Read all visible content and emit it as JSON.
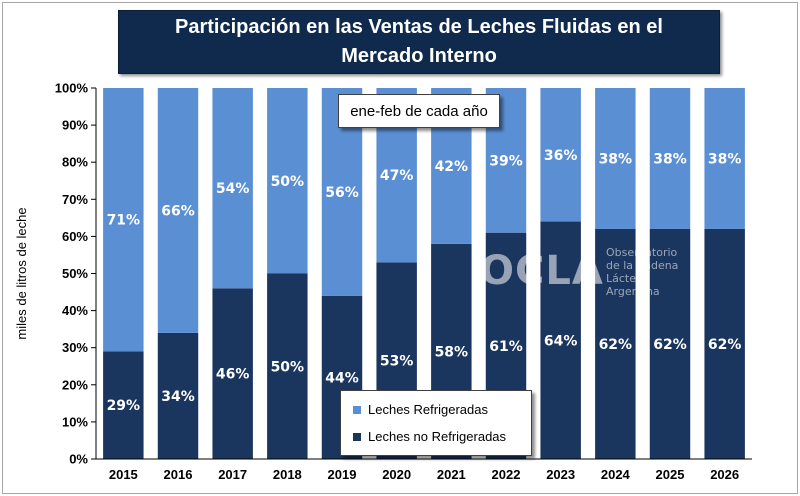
{
  "title": "Participación  en las Ventas de Leches Fluidas  en el Mercado Interno",
  "subtitle": "ene-feb de cada año",
  "watermark": {
    "logo": "OCLA",
    "line1": "Observatorio",
    "line2": "de la Cadena Láctea",
    "line3": "Argentina"
  },
  "colors": {
    "refrigeradas": "#5b8fd4",
    "no_refrigeradas": "#1a355e",
    "plot_background": "#ffffff",
    "title_background": "#0f2a4d"
  },
  "chart_data": {
    "type": "bar",
    "stacked": true,
    "ylabel": "miles de litros de leche",
    "ylim": [
      0,
      100
    ],
    "y_ticks": [
      "0%",
      "10%",
      "20%",
      "30%",
      "40%",
      "50%",
      "60%",
      "70%",
      "80%",
      "90%",
      "100%"
    ],
    "categories": [
      "2015",
      "2016",
      "2017",
      "2018",
      "2019",
      "2020",
      "2021",
      "2022",
      "2023",
      "2024",
      "2025",
      "2026"
    ],
    "series": [
      {
        "name": "Leches no Refrigeradas",
        "values": [
          29,
          34,
          46,
          50,
          44,
          53,
          58,
          61,
          64,
          62,
          62,
          62
        ],
        "labels": [
          "29%",
          "34%",
          "46%",
          "50%",
          "44%",
          "53%",
          "58%",
          "61%",
          "64%",
          "62%",
          "62%",
          "62%"
        ]
      },
      {
        "name": "Leches Refrigeradas",
        "values": [
          71,
          66,
          54,
          50,
          56,
          47,
          42,
          39,
          36,
          38,
          38,
          38
        ],
        "labels": [
          "71%",
          "66%",
          "54%",
          "50%",
          "56%",
          "47%",
          "42%",
          "39%",
          "36%",
          "38%",
          "38%",
          "38%"
        ]
      }
    ],
    "legend": {
      "position": "bottom-center",
      "entries": [
        "Leches Refrigeradas",
        "Leches no Refrigeradas"
      ]
    }
  }
}
